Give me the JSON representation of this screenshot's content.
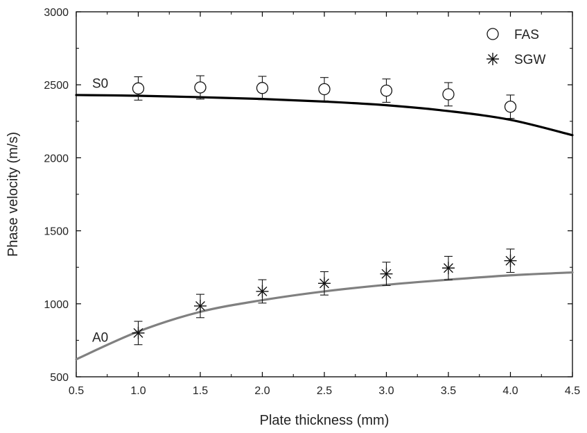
{
  "chart_data": {
    "type": "scatter",
    "title": "",
    "xlabel": "Plate thickness (mm)",
    "ylabel": "Phase velocity (m/s)",
    "xlim": [
      0.5,
      4.5
    ],
    "ylim": [
      500,
      3000
    ],
    "x_ticks": [
      "0.5",
      "1.0",
      "1.5",
      "2.0",
      "2.5",
      "3.0",
      "3.5",
      "4.0",
      "4.5"
    ],
    "y_ticks": [
      "500",
      "1000",
      "1500",
      "2000",
      "2500",
      "3000"
    ],
    "grid": false,
    "legend_position": "top-right",
    "series": [
      {
        "name": "FAS",
        "marker": "open-circle",
        "color": "#111111",
        "x": [
          1.0,
          1.5,
          2.0,
          2.5,
          3.0,
          3.5,
          4.0
        ],
        "y": [
          2475,
          2482,
          2478,
          2470,
          2460,
          2435,
          2350
        ],
        "error": [
          80,
          80,
          80,
          80,
          80,
          80,
          80
        ]
      },
      {
        "name": "SGW",
        "marker": "asterisk",
        "color": "#111111",
        "x": [
          1.0,
          1.5,
          2.0,
          2.5,
          3.0,
          3.5,
          4.0
        ],
        "y": [
          800,
          985,
          1085,
          1140,
          1205,
          1245,
          1295
        ],
        "error": [
          80,
          80,
          80,
          80,
          80,
          80,
          80
        ]
      }
    ],
    "curves": [
      {
        "label": "S0",
        "color": "#000000",
        "x": [
          0.5,
          1.0,
          1.5,
          2.0,
          2.5,
          3.0,
          3.5,
          4.0,
          4.5
        ],
        "y": [
          2430,
          2425,
          2415,
          2403,
          2385,
          2360,
          2320,
          2260,
          2155
        ]
      },
      {
        "label": "A0",
        "color": "#808080",
        "x": [
          0.5,
          1.0,
          1.5,
          2.0,
          2.5,
          3.0,
          3.5,
          4.0,
          4.5
        ],
        "y": [
          620,
          810,
          945,
          1025,
          1085,
          1130,
          1165,
          1195,
          1215
        ]
      }
    ]
  }
}
